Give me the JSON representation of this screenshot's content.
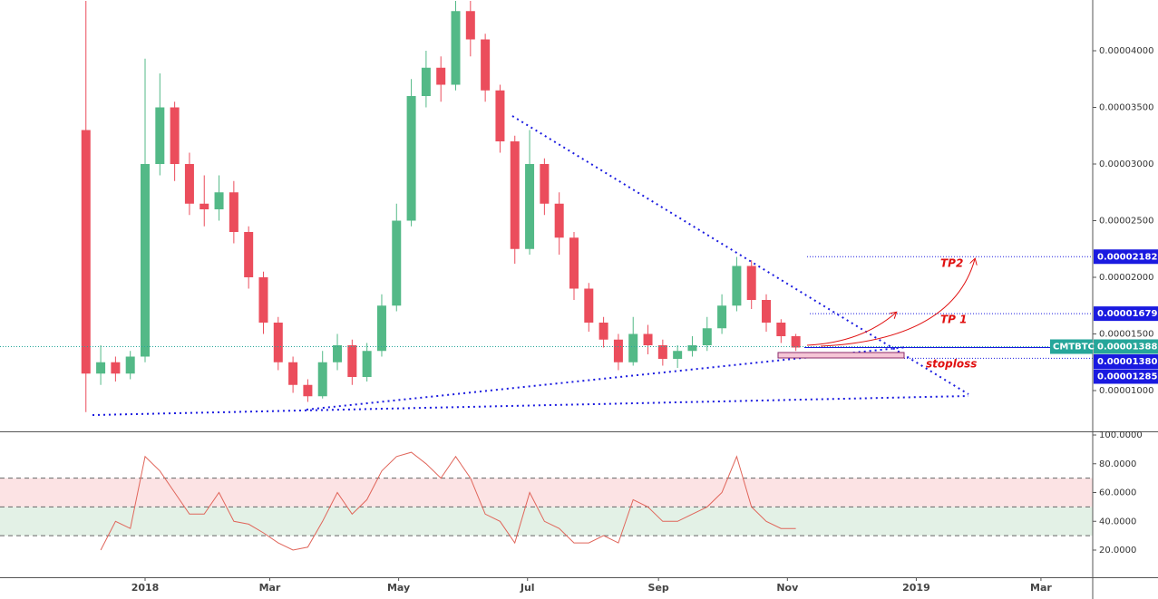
{
  "chart_data": [
    {
      "type": "candlestick",
      "symbol": "CMTBTC",
      "x": [
        -28,
        -21,
        -14,
        -7,
        0,
        7,
        14,
        21,
        28,
        35,
        42,
        49,
        56,
        63,
        70,
        77,
        84,
        91,
        98,
        105,
        112,
        119,
        126,
        133,
        140,
        147,
        154,
        161,
        168,
        175,
        182,
        189,
        196,
        203,
        210,
        217,
        224,
        231,
        238,
        245,
        252,
        259,
        266,
        273,
        280,
        287,
        294,
        301,
        308
      ],
      "open": [
        3.3e-05,
        1.15e-05,
        1.25e-05,
        1.15e-05,
        1.3e-05,
        3e-05,
        3.5e-05,
        3e-05,
        2.65e-05,
        2.6e-05,
        2.75e-05,
        2.4e-05,
        2e-05,
        1.6e-05,
        1.25e-05,
        1.05e-05,
        9.5e-06,
        1.25e-05,
        1.4e-05,
        1.12e-05,
        1.35e-05,
        1.75e-05,
        2.5e-05,
        3.6e-05,
        3.85e-05,
        3.7e-05,
        4.35e-05,
        4.1e-05,
        3.65e-05,
        3.2e-05,
        2.25e-05,
        3e-05,
        2.65e-05,
        2.35e-05,
        1.9e-05,
        1.6e-05,
        1.45e-05,
        1.25e-05,
        1.5e-05,
        1.4e-05,
        1.28e-05,
        1.35e-05,
        1.4e-05,
        1.55e-05,
        1.75e-05,
        2.1e-05,
        1.8e-05,
        1.6e-05,
        1.48e-05
      ],
      "high": [
        4.44e-05,
        1.4e-05,
        1.3e-05,
        1.35e-05,
        3.93e-05,
        3.8e-05,
        3.55e-05,
        3.1e-05,
        2.9e-05,
        2.9e-05,
        2.85e-05,
        2.45e-05,
        2.05e-05,
        1.65e-05,
        1.3e-05,
        1.1e-05,
        1.35e-05,
        1.5e-05,
        1.45e-05,
        1.42e-05,
        1.85e-05,
        2.65e-05,
        3.75e-05,
        4e-05,
        3.95e-05,
        4.44e-05,
        4.44e-05,
        4.15e-05,
        3.7e-05,
        3.25e-05,
        3.3e-05,
        3.05e-05,
        2.75e-05,
        2.4e-05,
        1.95e-05,
        1.65e-05,
        1.5e-05,
        1.65e-05,
        1.58e-05,
        1.45e-05,
        1.4e-05,
        1.48e-05,
        1.65e-05,
        1.85e-05,
        2.18e-05,
        2.15e-05,
        1.85e-05,
        1.63e-05,
        1.5e-05
      ],
      "low": [
        8.1e-06,
        1.05e-05,
        1.08e-05,
        1.1e-05,
        1.25e-05,
        2.9e-05,
        2.85e-05,
        2.55e-05,
        2.45e-05,
        2.5e-05,
        2.3e-05,
        1.9e-05,
        1.5e-05,
        1.18e-05,
        9.8e-06,
        9e-06,
        9.3e-06,
        1.18e-05,
        1.05e-05,
        1.08e-05,
        1.3e-05,
        1.7e-05,
        2.45e-05,
        3.5e-05,
        3.55e-05,
        3.65e-05,
        3.95e-05,
        3.55e-05,
        3.1e-05,
        2.12e-05,
        2.2e-05,
        2.55e-05,
        2.2e-05,
        1.8e-05,
        1.52e-05,
        1.38e-05,
        1.18e-05,
        1.22e-05,
        1.32e-05,
        1.22e-05,
        1.2e-05,
        1.3e-05,
        1.35e-05,
        1.5e-05,
        1.7e-05,
        1.72e-05,
        1.52e-05,
        1.42e-05,
        1.35e-05
      ],
      "close": [
        1.15e-05,
        1.25e-05,
        1.15e-05,
        1.3e-05,
        3e-05,
        3.5e-05,
        3e-05,
        2.65e-05,
        2.6e-05,
        2.75e-05,
        2.4e-05,
        2e-05,
        1.6e-05,
        1.25e-05,
        1.05e-05,
        9.5e-06,
        1.25e-05,
        1.4e-05,
        1.12e-05,
        1.35e-05,
        1.75e-05,
        2.5e-05,
        3.6e-05,
        3.85e-05,
        3.7e-05,
        4.35e-05,
        4.1e-05,
        3.65e-05,
        3.2e-05,
        2.25e-05,
        3e-05,
        2.65e-05,
        2.35e-05,
        1.9e-05,
        1.6e-05,
        1.45e-05,
        1.25e-05,
        1.5e-05,
        1.4e-05,
        1.28e-05,
        1.35e-05,
        1.4e-05,
        1.55e-05,
        1.75e-05,
        2.1e-05,
        1.8e-05,
        1.6e-05,
        1.48e-05,
        1.38e-05
      ],
      "up_color": "#53b987",
      "down_color": "#eb4d5c",
      "xlim": [
        -68.67,
        448.5
      ],
      "ylim": [
        6.48e-06,
        4.448e-05
      ],
      "yticks": [
        {
          "value": 1e-05,
          "label": "0.00001000"
        },
        {
          "value": 1.5e-05,
          "label": "0.00001500"
        },
        {
          "value": 2e-05,
          "label": "0.00002000"
        },
        {
          "value": 2.5e-05,
          "label": "0.00002500"
        },
        {
          "value": 3e-05,
          "label": "0.00003000"
        },
        {
          "value": 3.5e-05,
          "label": "0.00003500"
        },
        {
          "value": 4e-05,
          "label": "0.00004000"
        }
      ],
      "xticks": [
        {
          "value": 0,
          "label": "2018"
        },
        {
          "value": 59,
          "label": "Mar"
        },
        {
          "value": 120,
          "label": "May"
        },
        {
          "value": 181,
          "label": "Jul"
        },
        {
          "value": 243,
          "label": "Sep"
        },
        {
          "value": 304,
          "label": "Nov"
        },
        {
          "value": 365,
          "label": "2019"
        },
        {
          "value": 424,
          "label": "Mar"
        }
      ],
      "last_price": 1.388e-05,
      "last_price_color": "#26a69a",
      "price_lines": [
        {
          "value": 2.182e-05,
          "color": "#1a1ae0"
        },
        {
          "value": 1.679e-05,
          "color": "#1a1ae0"
        },
        {
          "value": {
            "value": 1.38e-05,
            "label": "0.00001380"
          },
          "color": "#1a1ae0"
        },
        {
          "value": 1.285e-05,
          "color": "#1a1ae0"
        }
      ],
      "annotations": [
        "TP2",
        "TP 1",
        "stoploss"
      ]
    },
    {
      "type": "line",
      "x": [
        -28,
        -21,
        -14,
        -7,
        0,
        7,
        14,
        21,
        28,
        35,
        42,
        49,
        56,
        63,
        70,
        77,
        84,
        91,
        98,
        105,
        112,
        119,
        126,
        133,
        140,
        147,
        154,
        161,
        168,
        175,
        182,
        189,
        196,
        203,
        210,
        217,
        224,
        231,
        238,
        245,
        252,
        259,
        266,
        273,
        280,
        287,
        294,
        301,
        308
      ],
      "values": [
        null,
        20,
        40,
        35,
        85,
        75,
        60,
        45,
        45,
        60,
        40,
        38,
        32,
        25,
        20,
        22,
        40,
        60,
        45,
        55,
        75,
        85,
        88,
        80,
        70,
        85,
        70,
        45,
        40,
        25,
        60,
        40,
        35,
        25,
        25,
        30,
        25,
        55,
        50,
        40,
        40,
        45,
        50,
        60,
        85,
        50,
        40,
        35,
        35
      ],
      "color": "#e0655a",
      "xlim": [
        -68.67,
        448.5
      ],
      "ylim": [
        1.1,
        101.9
      ],
      "levels": [
        30,
        50,
        70
      ],
      "level_fills": [
        "#e3f1e6",
        "#fce3e4"
      ],
      "yticks": [
        {
          "value": 20,
          "label": "20.0000"
        },
        {
          "value": 40,
          "label": "40.0000"
        },
        {
          "value": 60,
          "label": "60.0000"
        },
        {
          "value": 80,
          "label": "80.0000"
        },
        {
          "value": 100,
          "label": "100.0000"
        }
      ]
    }
  ]
}
